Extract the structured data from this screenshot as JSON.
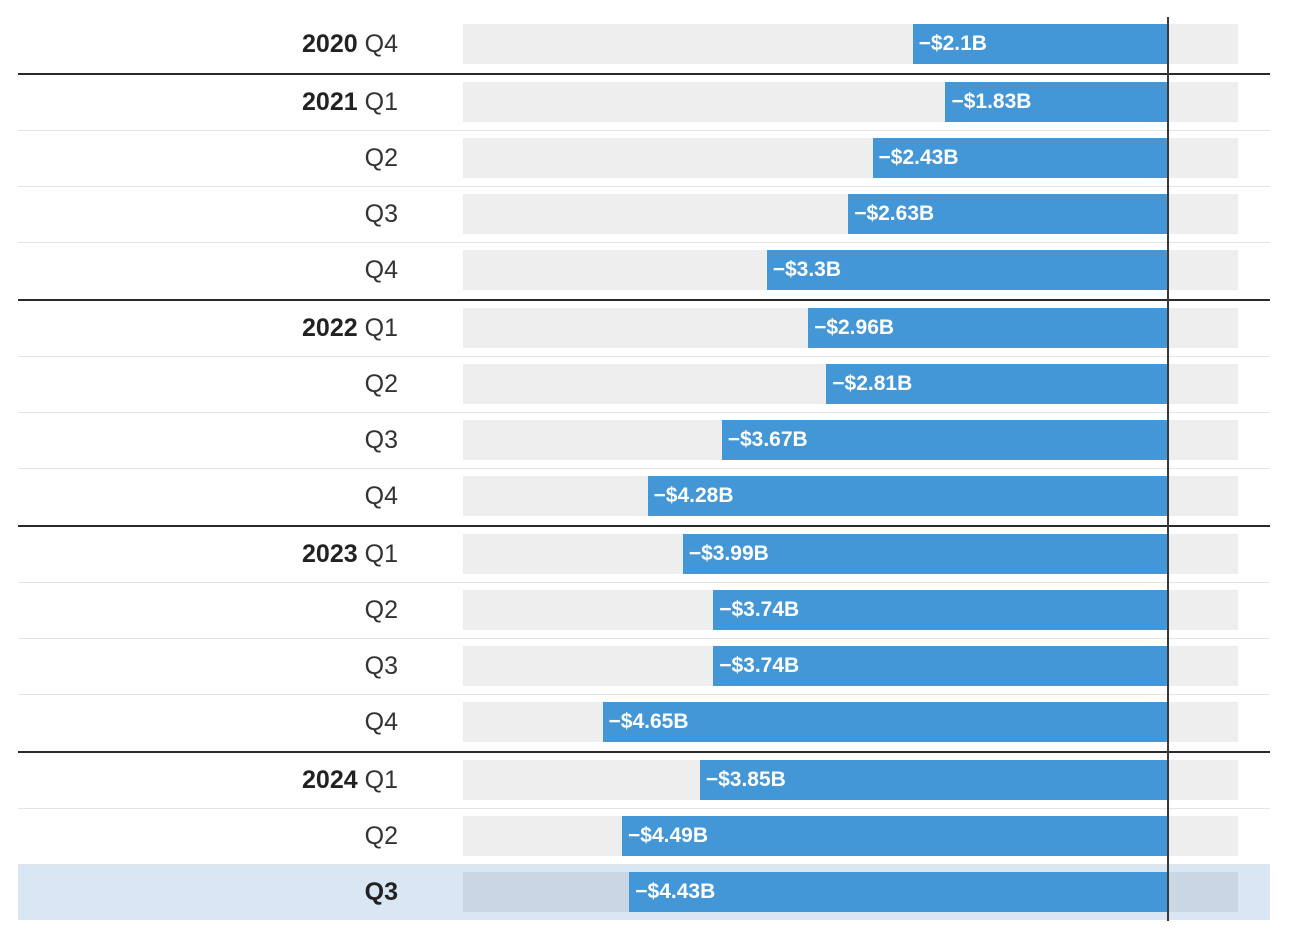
{
  "colors": {
    "bar": "#4497d7",
    "track": "#eeeeee",
    "highlight_row": "#d9e6f3",
    "highlight_track": "#c9d6e3",
    "zero_line": "#3a3a3a"
  },
  "chart_data": {
    "type": "bar",
    "orientation": "horizontal",
    "title": "",
    "xlabel": "",
    "ylabel": "",
    "unit": "$B",
    "xlim": [
      -6.0,
      0.55
    ],
    "grid": false,
    "highlight_index": 15,
    "rows": [
      {
        "year": "2020",
        "quarter": "Q4",
        "value": -2.1,
        "label": "−$2.1B"
      },
      {
        "year": "2021",
        "quarter": "Q1",
        "value": -1.83,
        "label": "−$1.83B"
      },
      {
        "year": "",
        "quarter": "Q2",
        "value": -2.43,
        "label": "−$2.43B"
      },
      {
        "year": "",
        "quarter": "Q3",
        "value": -2.63,
        "label": "−$2.63B"
      },
      {
        "year": "",
        "quarter": "Q4",
        "value": -3.3,
        "label": "−$3.3B"
      },
      {
        "year": "2022",
        "quarter": "Q1",
        "value": -2.96,
        "label": "−$2.96B"
      },
      {
        "year": "",
        "quarter": "Q2",
        "value": -2.81,
        "label": "−$2.81B"
      },
      {
        "year": "",
        "quarter": "Q3",
        "value": -3.67,
        "label": "−$3.67B"
      },
      {
        "year": "",
        "quarter": "Q4",
        "value": -4.28,
        "label": "−$4.28B"
      },
      {
        "year": "2023",
        "quarter": "Q1",
        "value": -3.99,
        "label": "−$3.99B"
      },
      {
        "year": "",
        "quarter": "Q2",
        "value": -3.74,
        "label": "−$3.74B"
      },
      {
        "year": "",
        "quarter": "Q3",
        "value": -3.74,
        "label": "−$3.74B"
      },
      {
        "year": "",
        "quarter": "Q4",
        "value": -4.65,
        "label": "−$4.65B"
      },
      {
        "year": "2024",
        "quarter": "Q1",
        "value": -3.85,
        "label": "−$3.85B"
      },
      {
        "year": "",
        "quarter": "Q2",
        "value": -4.49,
        "label": "−$4.49B"
      },
      {
        "year": "",
        "quarter": "Q3",
        "value": -4.43,
        "label": "−$4.43B"
      }
    ]
  }
}
